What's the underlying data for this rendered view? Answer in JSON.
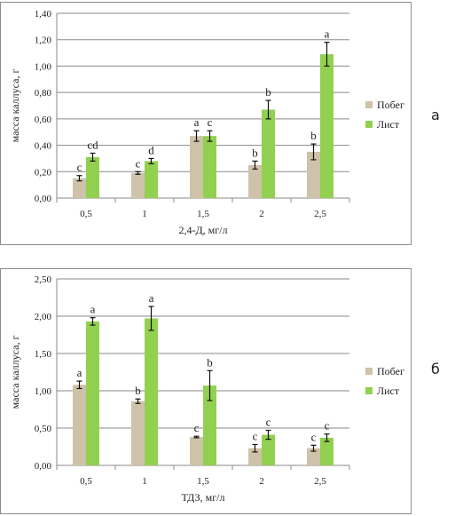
{
  "chart_data": [
    {
      "type": "bar",
      "panel_label": "а",
      "categories": [
        "0,5",
        "1",
        "1,5",
        "2",
        "2,5"
      ],
      "series": [
        {
          "name": "Побег",
          "color": "#cec2a8",
          "values": [
            0.15,
            0.19,
            0.47,
            0.25,
            0.35
          ],
          "errors": [
            0.02,
            0.01,
            0.04,
            0.03,
            0.06
          ],
          "letters": [
            "c",
            "c",
            "a",
            "b",
            "b"
          ]
        },
        {
          "name": "Лист",
          "color": "#92d050",
          "values": [
            0.31,
            0.28,
            0.47,
            0.67,
            1.09
          ],
          "errors": [
            0.03,
            0.02,
            0.04,
            0.07,
            0.09
          ],
          "letters": [
            "cd",
            "d",
            "c",
            "b",
            "a"
          ]
        }
      ],
      "xlabel": "2,4-Д, мг/л",
      "ylabel": "масса каллуса, г",
      "ylim": [
        0,
        1.4
      ],
      "yticks": [
        "0,00",
        "0,20",
        "0,40",
        "0,60",
        "0,80",
        "1,00",
        "1,20",
        "1,40"
      ],
      "grid": true,
      "legend_position": "right"
    },
    {
      "type": "bar",
      "panel_label": "б",
      "categories": [
        "0,5",
        "1",
        "1,5",
        "2",
        "2,5"
      ],
      "series": [
        {
          "name": "Побег",
          "color": "#cec2a8",
          "values": [
            1.08,
            0.86,
            0.38,
            0.23,
            0.23
          ],
          "errors": [
            0.05,
            0.03,
            0.01,
            0.05,
            0.04
          ],
          "letters": [
            "a",
            "b",
            "c",
            "c",
            "c"
          ]
        },
        {
          "name": "Лист",
          "color": "#92d050",
          "values": [
            1.93,
            1.97,
            1.07,
            0.41,
            0.37
          ],
          "errors": [
            0.05,
            0.16,
            0.2,
            0.06,
            0.05
          ],
          "letters": [
            "a",
            "a",
            "b",
            "c",
            "c"
          ]
        }
      ],
      "xlabel": "ТДЗ, мг/л",
      "ylabel": "масса каллуса, г",
      "ylim": [
        0,
        2.5
      ],
      "yticks": [
        "0,00",
        "0,50",
        "1,00",
        "1,50",
        "2,00",
        "2,50"
      ],
      "grid": true,
      "legend_position": "right"
    }
  ]
}
